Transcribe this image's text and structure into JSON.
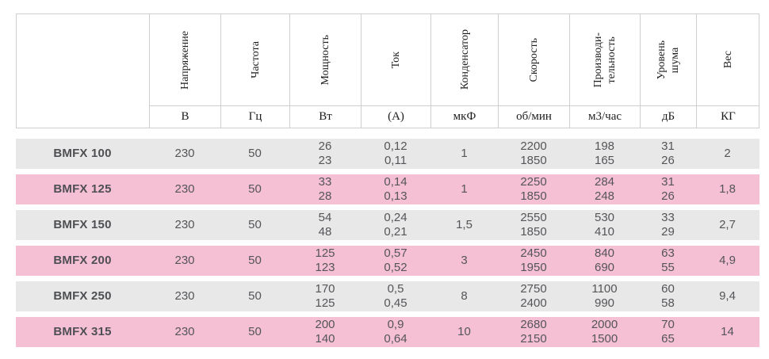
{
  "table": {
    "columns": [
      {
        "label": "",
        "unit": ""
      },
      {
        "label": "Напряжение",
        "unit": "В"
      },
      {
        "label": "Частота",
        "unit": "Гц"
      },
      {
        "label": "Мощность",
        "unit": "Вт"
      },
      {
        "label": "Ток",
        "unit": "(А)"
      },
      {
        "label": "Конденсатор",
        "unit": "мкФ"
      },
      {
        "label": "Скорость",
        "unit": "об/мин"
      },
      {
        "label": "Производи-\nтельность",
        "unit": "м3/час"
      },
      {
        "label": "Уровень\nшума",
        "unit": "дБ"
      },
      {
        "label": "Вес",
        "unit": "КГ"
      }
    ],
    "rows": [
      {
        "model": "BMFX 100",
        "values": [
          "230",
          "50",
          "26\n23",
          "0,12\n0,11",
          "1",
          "2200\n1850",
          "198\n165",
          "31\n26",
          "2"
        ]
      },
      {
        "model": "BMFX 125",
        "values": [
          "230",
          "50",
          "33\n28",
          "0,14\n0,13",
          "1",
          "2250\n1850",
          "284\n248",
          "31\n26",
          "1,8"
        ]
      },
      {
        "model": "BMFX 150",
        "values": [
          "230",
          "50",
          "54\n48",
          "0,24\n0,21",
          "1,5",
          "2550\n1850",
          "530\n410",
          "33\n29",
          "2,7"
        ]
      },
      {
        "model": "BMFX 200",
        "values": [
          "230",
          "50",
          "125\n123",
          "0,57\n0,52",
          "3",
          "2450\n1950",
          "840\n690",
          "63\n55",
          "4,9"
        ]
      },
      {
        "model": "BMFX 250",
        "values": [
          "230",
          "50",
          "170\n125",
          "0,5\n0,45",
          "8",
          "2750\n2400",
          "1100\n990",
          "60\n58",
          "9,4"
        ]
      },
      {
        "model": "BMFX 315",
        "values": [
          "230",
          "50",
          "200\n140",
          "0,9\n0,64",
          "10",
          "2680\n2150",
          "2000\n1500",
          "70\n65",
          "14"
        ]
      }
    ]
  },
  "colors": {
    "row_gray": "#e8e8e8",
    "row_pink": "#f6c0d4",
    "border": "#cfcfcf",
    "data_text": "#545558",
    "header_text": "#1c1c1c"
  }
}
